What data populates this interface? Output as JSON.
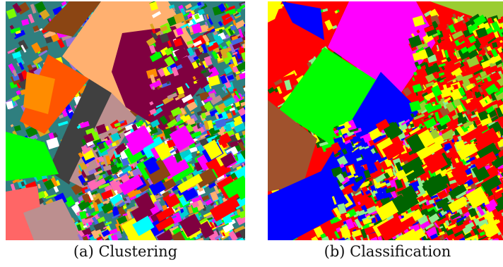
{
  "figure": {
    "panels": [
      {
        "id": "a",
        "caption": "(a) Clustering",
        "palette": [
          "#ff0000",
          "#00ff00",
          "#0000ff",
          "#ffff00",
          "#00ffff",
          "#ff00ff",
          "#8b4513",
          "#800040",
          "#ff8c00",
          "#ffb070",
          "#404040",
          "#bc8f8f",
          "#008000",
          "#ff69b4",
          "#7cfc00",
          "#9370db",
          "#00ced1",
          "#4169e1",
          "#daa520",
          "#ffffff"
        ]
      },
      {
        "id": "b",
        "caption": "(b) Classification",
        "palette": [
          "#ff0000",
          "#00ff00",
          "#0000ff",
          "#ffff00",
          "#ff00ff",
          "#a0522d",
          "#006400",
          "#9acd32",
          "#ffffff",
          "#90ee90",
          "#2e8b57"
        ]
      }
    ]
  }
}
